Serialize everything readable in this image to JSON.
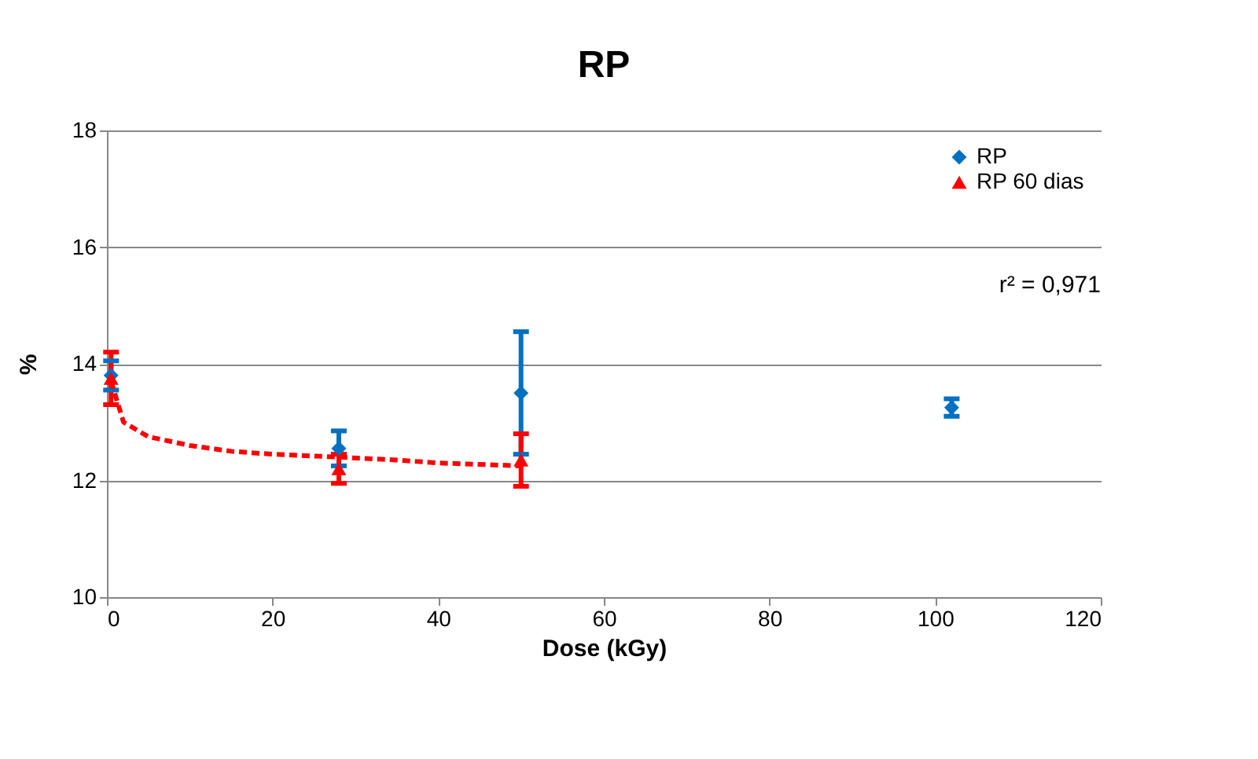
{
  "chart_data": {
    "type": "scatter",
    "title": "RP",
    "xlabel": "Dose (kGy)",
    "ylabel": "%",
    "xlim": [
      0,
      120
    ],
    "xticks": [
      0,
      20,
      40,
      60,
      80,
      100,
      120
    ],
    "ylim": [
      10,
      18
    ],
    "yticks": [
      10,
      12,
      14,
      16,
      18
    ],
    "grid": "y",
    "legend": "top right",
    "series": [
      {
        "name": "RP",
        "color": "#0070c0",
        "marker": "diamond",
        "x": [
          0.5,
          28,
          50,
          102
        ],
        "values": [
          13.8,
          12.55,
          13.5,
          13.25
        ],
        "errors": [
          0.25,
          0.3,
          1.05,
          0.15
        ]
      },
      {
        "name": "RP 60 dias",
        "color": "#ff0000",
        "marker": "triangle",
        "x": [
          0.5,
          28,
          50
        ],
        "values": [
          13.75,
          12.2,
          12.35
        ],
        "errors": [
          0.45,
          0.25,
          0.45
        ]
      },
      {
        "type": "line",
        "color": "#ff0000",
        "line_style": "dashed",
        "x": [
          0.5,
          2,
          5,
          10,
          15,
          20,
          28,
          35,
          40,
          50
        ],
        "values": [
          13.7,
          13.0,
          12.75,
          12.6,
          12.5,
          12.45,
          12.4,
          12.35,
          12.3,
          12.25
        ]
      }
    ],
    "annotations": [
      "r² = 0,971"
    ]
  }
}
